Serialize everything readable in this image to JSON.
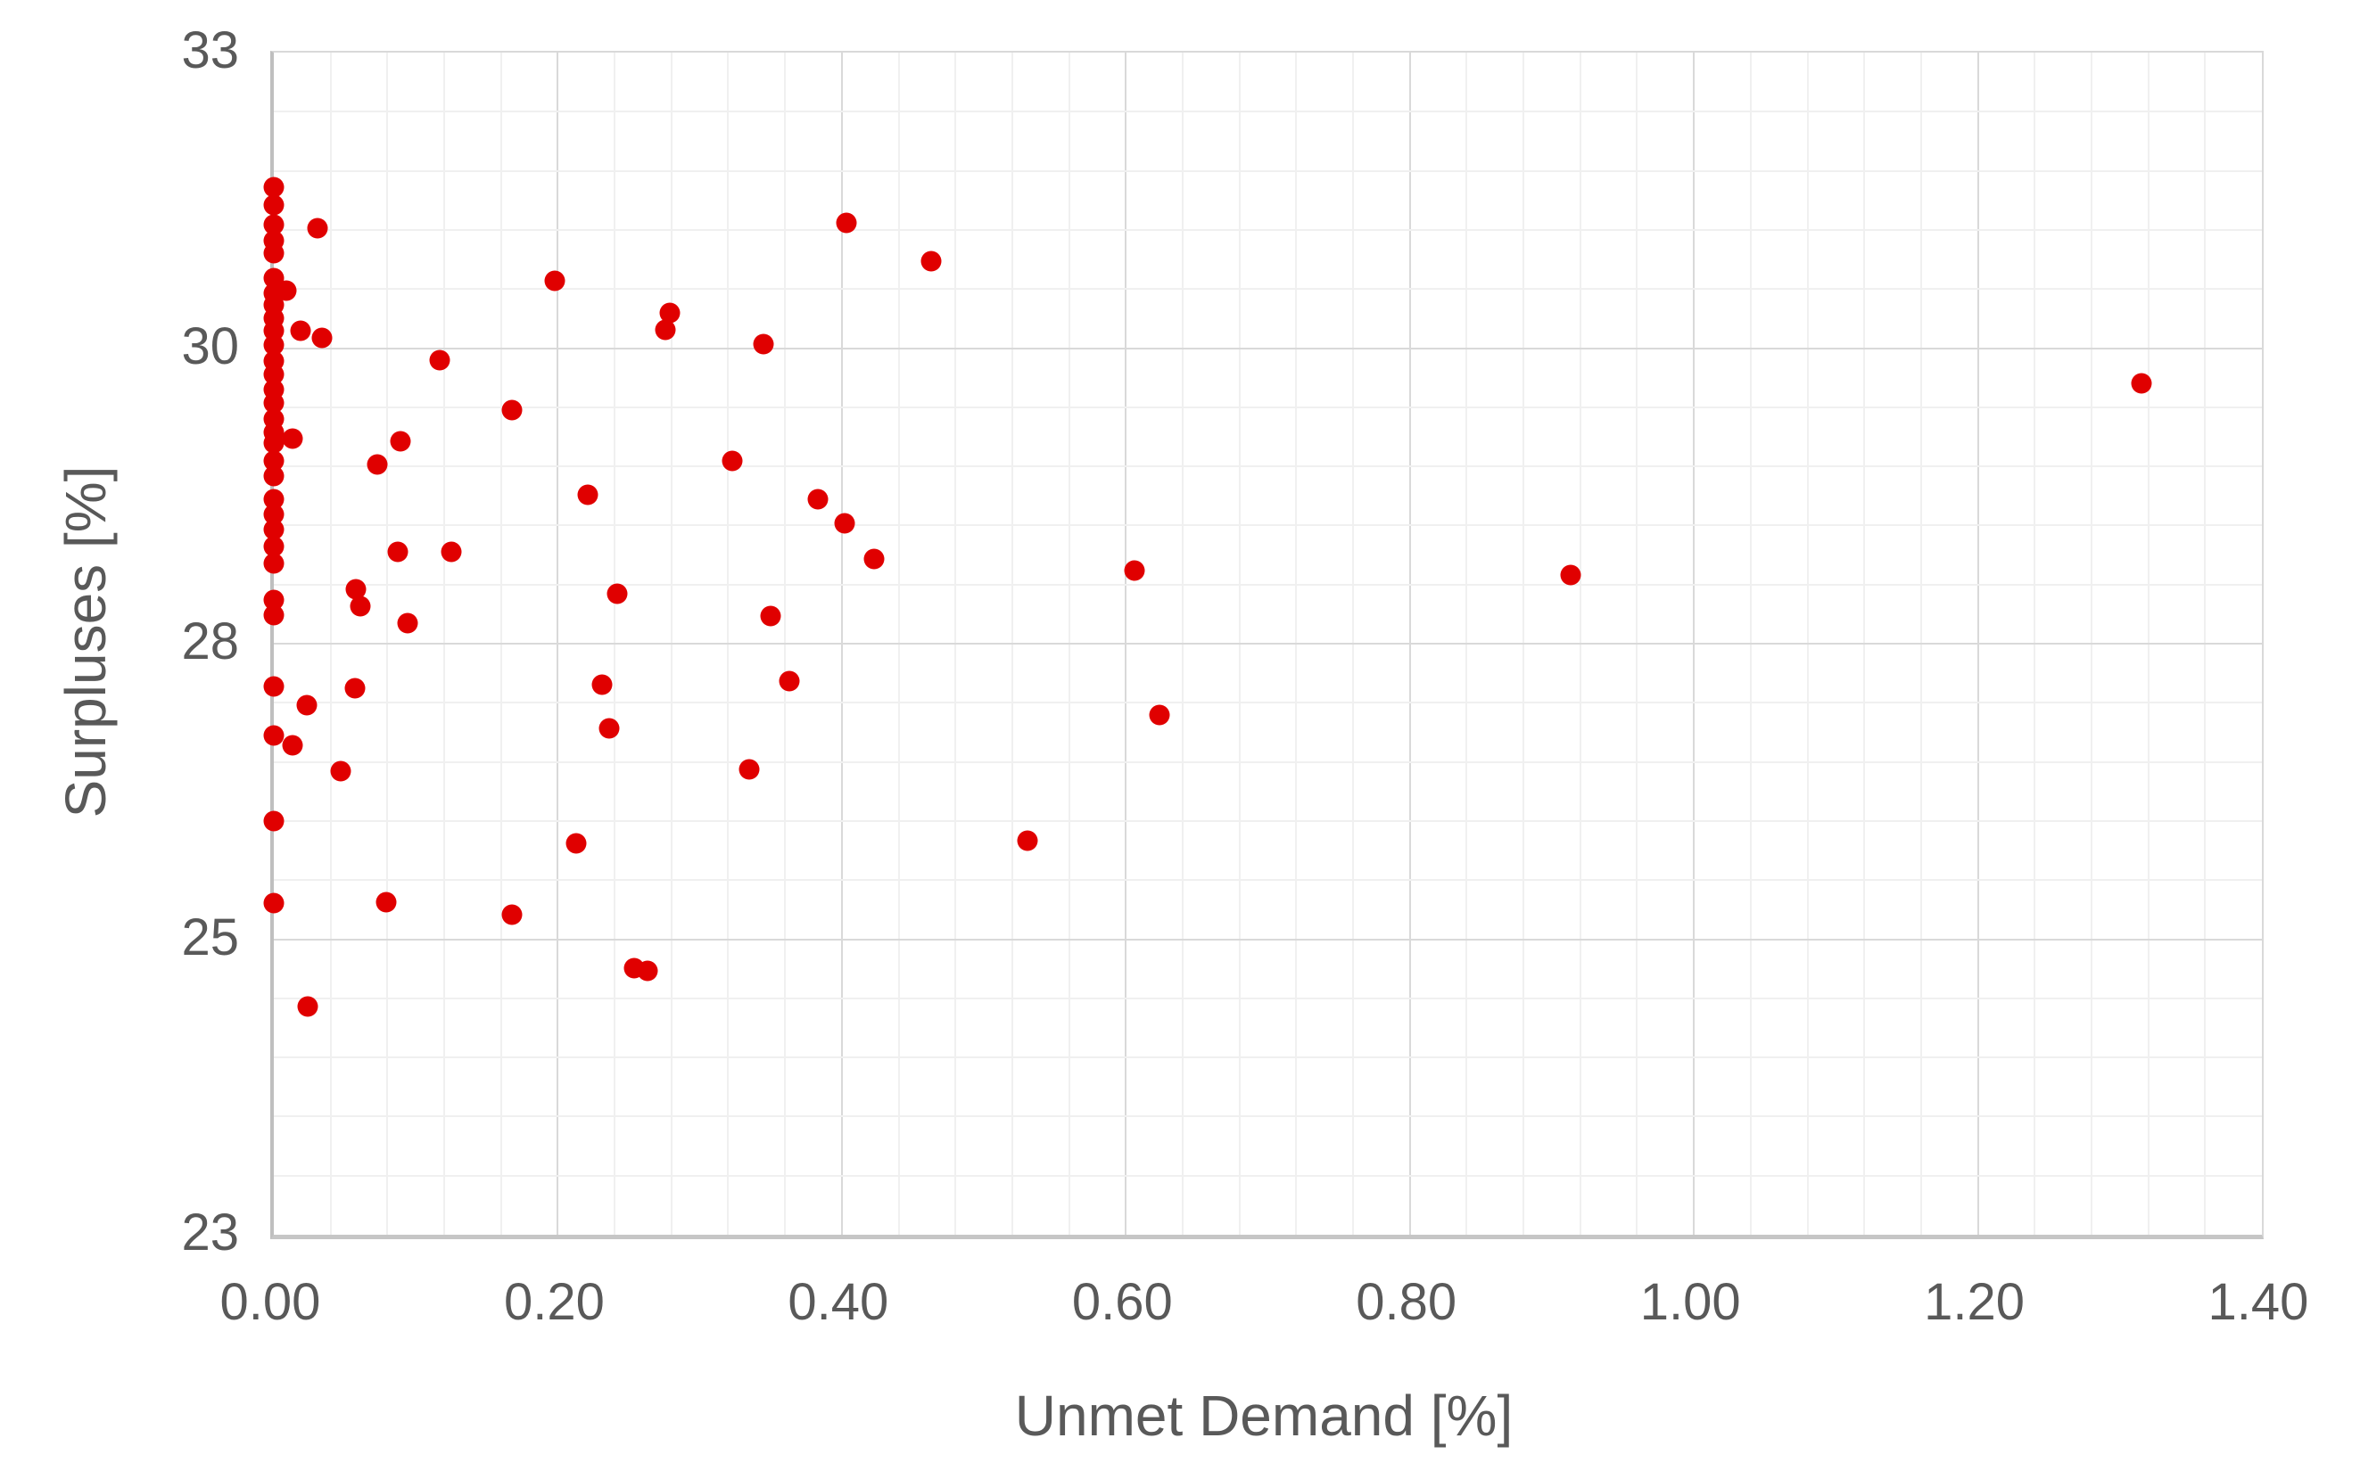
{
  "chart_data": {
    "type": "scatter",
    "title": "",
    "xlabel": "Unmet Demand [%]",
    "ylabel": "Surpluses [%]",
    "x_tick_labels": [
      "0.00",
      "0.20",
      "0.40",
      "0.60",
      "0.80",
      "1.00",
      "1.20",
      "1.40"
    ],
    "y_tick_labels": [
      "33",
      "30",
      "28",
      "25",
      "23"
    ],
    "xlim": [
      0.0,
      1.4
    ],
    "ylim": [
      23,
      33
    ],
    "y_scale": "log-between-endpoints",
    "x_minor_step": 0.04,
    "x_major_step": 0.2,
    "y_minor_divisions_per_major": 5,
    "grid": true,
    "legend": "none",
    "marker_color": "#e00000",
    "points": [
      [
        0.0,
        31.67
      ],
      [
        0.0,
        31.5
      ],
      [
        0.0,
        31.31
      ],
      [
        0.0,
        31.16
      ],
      [
        0.0,
        31.04
      ],
      [
        0.0,
        30.8
      ],
      [
        0.009,
        30.69
      ],
      [
        0.0,
        30.66
      ],
      [
        0.0,
        30.55
      ],
      [
        0.0,
        30.43
      ],
      [
        0.0,
        30.31
      ],
      [
        0.019,
        30.31
      ],
      [
        0.034,
        30.25
      ],
      [
        0.0,
        30.18
      ],
      [
        0.0,
        30.03
      ],
      [
        0.0,
        29.91
      ],
      [
        0.0,
        29.77
      ],
      [
        0.0,
        29.65
      ],
      [
        0.0,
        29.51
      ],
      [
        0.0,
        29.39
      ],
      [
        0.013,
        29.33
      ],
      [
        0.0,
        29.29
      ],
      [
        0.0,
        29.13
      ],
      [
        0.0,
        29.0
      ],
      [
        0.0,
        28.79
      ],
      [
        0.0,
        28.66
      ],
      [
        0.0,
        28.53
      ],
      [
        0.0,
        28.38
      ],
      [
        0.0,
        28.23
      ],
      [
        0.0,
        27.92
      ],
      [
        0.0,
        27.79
      ],
      [
        0.0,
        27.19
      ],
      [
        0.0,
        26.79
      ],
      [
        0.013,
        26.71
      ],
      [
        0.0,
        26.1
      ],
      [
        0.0,
        25.45
      ],
      [
        0.031,
        31.28
      ],
      [
        0.023,
        27.04
      ],
      [
        0.047,
        26.5
      ],
      [
        0.024,
        24.66
      ],
      [
        0.058,
        28.01
      ],
      [
        0.061,
        27.87
      ],
      [
        0.057,
        27.18
      ],
      [
        0.087,
        28.33
      ],
      [
        0.125,
        28.33
      ],
      [
        0.094,
        27.72
      ],
      [
        0.423,
        28.27
      ],
      [
        0.242,
        27.97
      ],
      [
        0.35,
        27.78
      ],
      [
        0.231,
        27.21
      ],
      [
        0.363,
        27.24
      ],
      [
        0.236,
        26.85
      ],
      [
        0.335,
        26.51
      ],
      [
        0.213,
        25.92
      ],
      [
        0.531,
        25.94
      ],
      [
        0.254,
        24.95
      ],
      [
        0.263,
        24.93
      ],
      [
        0.403,
        31.33
      ],
      [
        0.463,
        30.96
      ],
      [
        0.279,
        30.48
      ],
      [
        0.276,
        30.32
      ],
      [
        0.345,
        30.19
      ],
      [
        0.323,
        29.13
      ],
      [
        0.221,
        28.83
      ],
      [
        0.383,
        28.79
      ],
      [
        0.402,
        28.58
      ],
      [
        0.198,
        30.78
      ],
      [
        0.117,
        30.04
      ],
      [
        0.168,
        29.59
      ],
      [
        0.089,
        29.31
      ],
      [
        0.073,
        29.1
      ],
      [
        0.606,
        28.17
      ],
      [
        0.624,
        26.96
      ],
      [
        0.913,
        28.13
      ],
      [
        1.315,
        29.83
      ],
      [
        0.079,
        25.46
      ],
      [
        0.168,
        25.36
      ]
    ]
  }
}
